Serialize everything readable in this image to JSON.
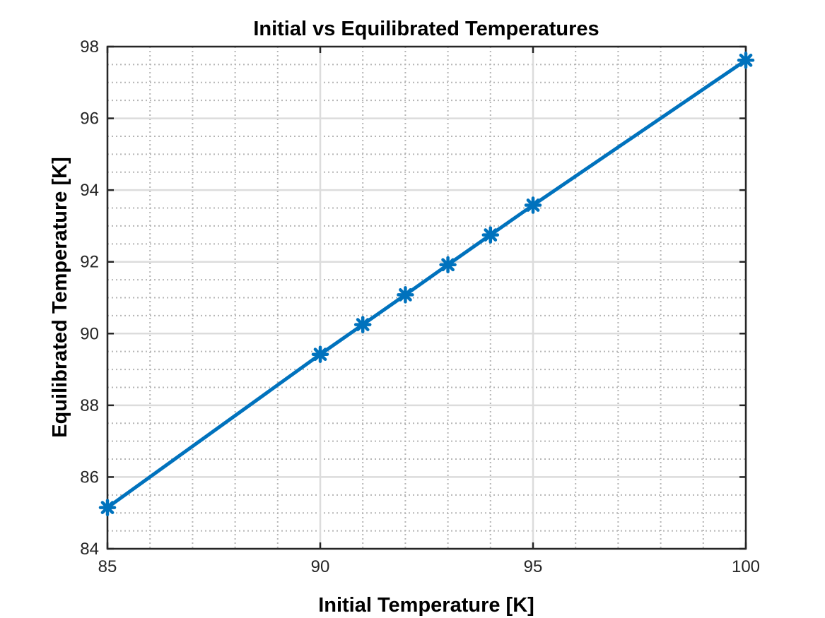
{
  "chart_data": {
    "type": "line",
    "title": "Initial vs Equilibrated Temperatures",
    "xlabel": "Initial Temperature [K]",
    "ylabel": "Equilibrated Temperature [K]",
    "xlim": [
      85,
      100
    ],
    "ylim": [
      84,
      98
    ],
    "xticks": [
      85,
      90,
      95,
      100
    ],
    "yticks": [
      84,
      86,
      88,
      90,
      92,
      94,
      96,
      98
    ],
    "x_minor_step": 1,
    "y_minor_step": 0.5,
    "grid": true,
    "minor_grid": true,
    "marker": "asterisk",
    "color": "#0072BD",
    "series": [
      {
        "x": [
          85,
          90,
          91,
          92,
          93,
          94,
          95,
          100
        ],
        "y": [
          85.15,
          89.42,
          90.25,
          91.08,
          91.92,
          92.75,
          93.58,
          97.62
        ]
      }
    ]
  }
}
